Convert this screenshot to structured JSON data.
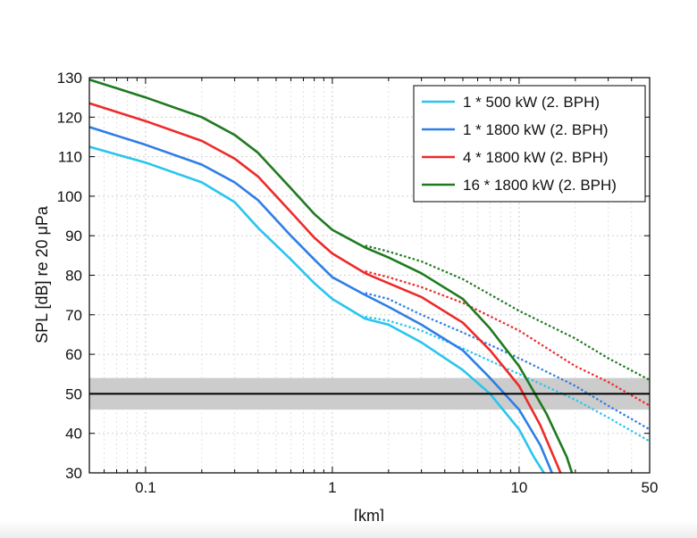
{
  "chart_data": {
    "type": "line",
    "title": "",
    "xlabel": "[km]",
    "ylabel": "SPL [dB] re 20 μPa",
    "xscale": "log",
    "xlim": [
      0.05,
      50
    ],
    "ylim": [
      30,
      130
    ],
    "x_ticks": [
      {
        "value": 0.1,
        "label": "0.1"
      },
      {
        "value": 1,
        "label": "1"
      },
      {
        "value": 10,
        "label": "10"
      },
      {
        "value": 50,
        "label": "50"
      }
    ],
    "y_ticks": [
      30,
      40,
      50,
      60,
      70,
      80,
      90,
      100,
      110,
      120,
      130
    ],
    "grid": true,
    "legend_position": "top-right",
    "threshold": {
      "value": 50,
      "band": [
        46,
        54
      ],
      "line_color": "#000000",
      "band_color": "#cccccc"
    },
    "series": [
      {
        "name": "1 * 500 kW (2. BPH)",
        "color": "#29c5ee",
        "solid": [
          [
            0.05,
            112.5
          ],
          [
            0.1,
            108.5
          ],
          [
            0.2,
            103.5
          ],
          [
            0.3,
            98.5
          ],
          [
            0.4,
            92
          ],
          [
            0.6,
            84
          ],
          [
            0.8,
            78
          ],
          [
            1,
            74
          ],
          [
            1.5,
            69
          ],
          [
            2,
            67.5
          ],
          [
            3,
            63
          ],
          [
            5,
            56
          ],
          [
            7,
            50
          ],
          [
            10,
            41
          ],
          [
            12,
            34
          ],
          [
            14,
            29
          ]
        ],
        "dotted": [
          [
            1.5,
            69.5
          ],
          [
            2,
            68.5
          ],
          [
            3,
            66
          ],
          [
            5,
            61.5
          ],
          [
            10,
            55
          ],
          [
            20,
            48.5
          ],
          [
            30,
            44
          ],
          [
            50,
            38
          ]
        ]
      },
      {
        "name": "1 * 1800 kW (2. BPH)",
        "color": "#2e7ee6",
        "solid": [
          [
            0.05,
            117.5
          ],
          [
            0.1,
            113
          ],
          [
            0.2,
            108
          ],
          [
            0.3,
            103.5
          ],
          [
            0.4,
            99
          ],
          [
            0.6,
            90
          ],
          [
            0.8,
            84
          ],
          [
            1,
            79.5
          ],
          [
            1.5,
            75
          ],
          [
            2,
            72
          ],
          [
            3,
            67.5
          ],
          [
            5,
            61
          ],
          [
            7,
            54
          ],
          [
            10,
            46
          ],
          [
            13,
            37
          ],
          [
            15,
            30
          ]
        ],
        "dotted": [
          [
            1.5,
            75.5
          ],
          [
            2,
            74
          ],
          [
            3,
            70
          ],
          [
            5,
            65.5
          ],
          [
            10,
            59
          ],
          [
            20,
            52
          ],
          [
            30,
            47
          ],
          [
            50,
            41
          ]
        ]
      },
      {
        "name": "4 * 1800 kW (2. BPH)",
        "color": "#ee2a2a",
        "solid": [
          [
            0.05,
            123.5
          ],
          [
            0.1,
            119
          ],
          [
            0.2,
            114
          ],
          [
            0.3,
            109.5
          ],
          [
            0.4,
            105
          ],
          [
            0.6,
            96
          ],
          [
            0.8,
            89.5
          ],
          [
            1,
            85.5
          ],
          [
            1.5,
            80.5
          ],
          [
            2,
            78
          ],
          [
            3,
            74.5
          ],
          [
            5,
            68
          ],
          [
            7,
            61
          ],
          [
            10,
            52
          ],
          [
            13,
            42
          ],
          [
            16,
            32
          ],
          [
            17,
            29
          ]
        ],
        "dotted": [
          [
            1.5,
            81
          ],
          [
            2,
            79.5
          ],
          [
            3,
            77
          ],
          [
            5,
            73
          ],
          [
            10,
            66
          ],
          [
            20,
            57
          ],
          [
            30,
            53
          ],
          [
            50,
            47
          ]
        ]
      },
      {
        "name": "16 * 1800 kW (2. BPH)",
        "color": "#1f7a1f",
        "solid": [
          [
            0.05,
            129.5
          ],
          [
            0.1,
            125
          ],
          [
            0.2,
            120
          ],
          [
            0.3,
            115.5
          ],
          [
            0.4,
            111
          ],
          [
            0.6,
            102
          ],
          [
            0.8,
            95.5
          ],
          [
            1,
            91.5
          ],
          [
            1.5,
            87
          ],
          [
            2,
            84.5
          ],
          [
            3,
            80.5
          ],
          [
            5,
            74
          ],
          [
            7,
            66.5
          ],
          [
            10,
            57
          ],
          [
            14,
            45
          ],
          [
            18,
            34
          ],
          [
            19.5,
            29
          ]
        ],
        "dotted": [
          [
            1.5,
            87.5
          ],
          [
            2,
            86
          ],
          [
            3,
            83.5
          ],
          [
            5,
            79
          ],
          [
            10,
            71
          ],
          [
            20,
            64
          ],
          [
            30,
            59
          ],
          [
            50,
            53.5
          ]
        ]
      }
    ]
  }
}
